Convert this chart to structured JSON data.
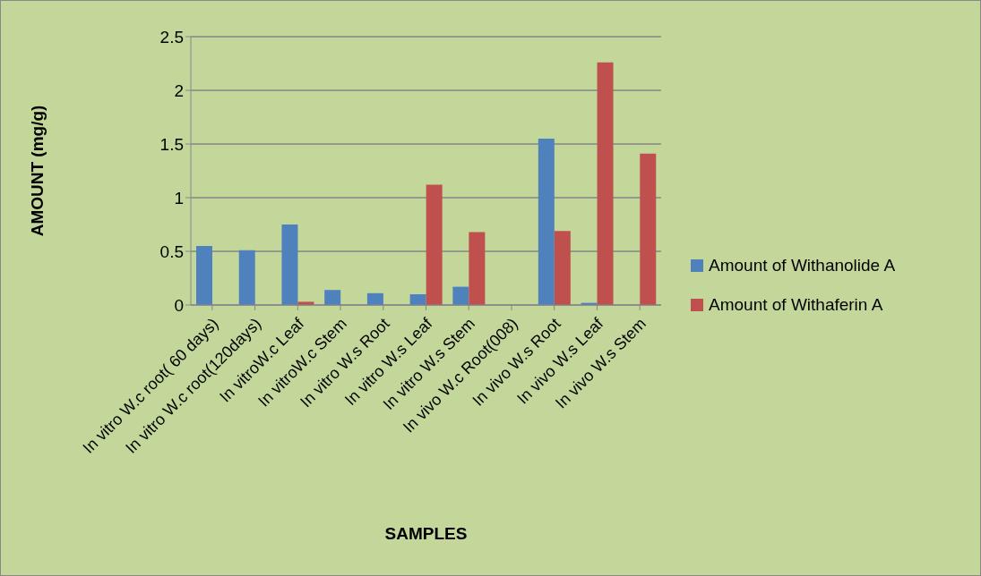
{
  "chart_data": {
    "type": "bar",
    "xlabel": "SAMPLES",
    "ylabel": "AMOUNT (mg/g)",
    "categories": [
      "In vitro  W.c  root( 60 days)",
      "In vitro W.c root(120days)",
      "In vitroW.c Leaf",
      "In vitroW.c Stem",
      "In vitro W.s  Root",
      "In vitro W.s Leaf",
      "In vitro W.s Stem",
      "In vivo W.c Root(008)",
      "In vivo W.s Root",
      "In vivo W.s Leaf",
      "In vivo W.s Stem"
    ],
    "series": [
      {
        "name": "Amount of Withanolide A",
        "color": "#4f81bd",
        "values": [
          0.55,
          0.51,
          0.75,
          0.14,
          0.11,
          0.1,
          0.17,
          0,
          1.55,
          0.02,
          0
        ]
      },
      {
        "name": "Amount of Withaferin A",
        "color": "#c0504d",
        "values": [
          null,
          null,
          0.03,
          0,
          0,
          1.12,
          0.68,
          0,
          0.69,
          2.26,
          1.41
        ]
      }
    ],
    "ylim": [
      0,
      2.5
    ],
    "yticks": [
      0,
      0.5,
      1,
      1.5,
      2,
      2.5
    ],
    "grid": "y",
    "legend": "right"
  }
}
